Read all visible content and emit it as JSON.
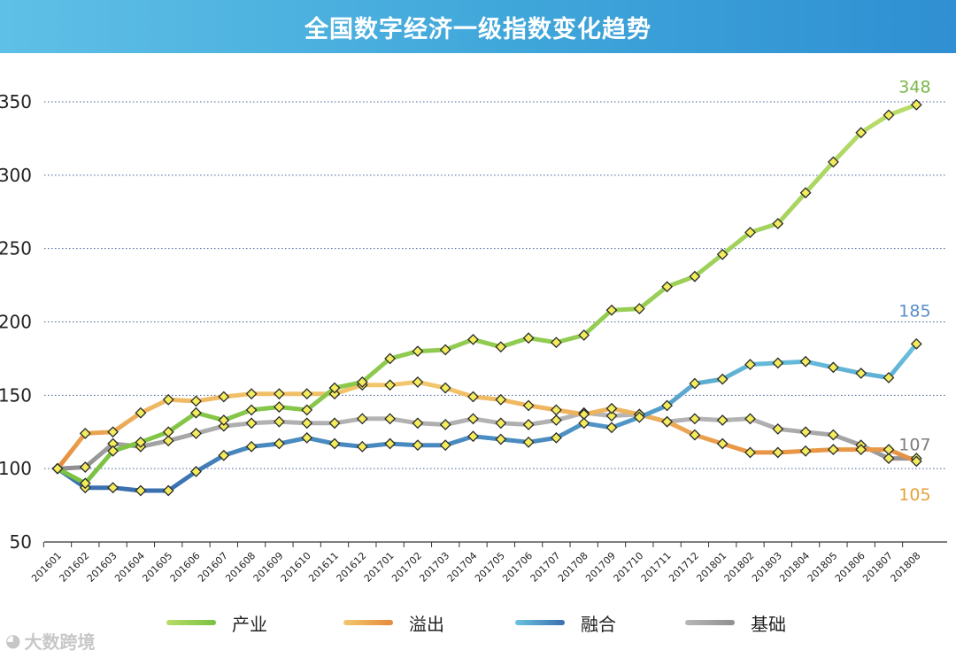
{
  "header": {
    "title": "全国数字经济一级指数变化趋势"
  },
  "chart_data": {
    "type": "line",
    "title": "全国数字经济一级指数变化趋势",
    "xlabel": "",
    "ylabel": "",
    "ylim": [
      50,
      350
    ],
    "yticks": [
      50,
      100,
      150,
      200,
      250,
      300,
      350
    ],
    "grid": true,
    "legend_position": "bottom",
    "categories": [
      "201601",
      "201602",
      "201603",
      "201604",
      "201605",
      "201606",
      "201607",
      "201608",
      "201609",
      "201610",
      "201611",
      "201612",
      "201701",
      "201702",
      "201703",
      "201704",
      "201705",
      "201706",
      "201707",
      "201708",
      "201709",
      "201710",
      "201711",
      "201712",
      "201801",
      "201802",
      "201803",
      "201804",
      "201805",
      "201806",
      "201807",
      "201808"
    ],
    "series": [
      {
        "name": "产业",
        "color": "#7ac142",
        "light": "#b9dc6a",
        "values": [
          100,
          90,
          112,
          118,
          125,
          138,
          133,
          140,
          142,
          140,
          155,
          159,
          175,
          180,
          181,
          188,
          183,
          189,
          186,
          191,
          208,
          209,
          224,
          231,
          246,
          261,
          267,
          288,
          309,
          329,
          341,
          348
        ]
      },
      {
        "name": "溢出",
        "color": "#e58a3c",
        "light": "#f2c86e",
        "values": [
          100,
          124,
          125,
          138,
          147,
          146,
          149,
          151,
          151,
          151,
          151,
          157,
          157,
          159,
          155,
          149,
          147,
          143,
          140,
          137,
          141,
          137,
          132,
          123,
          117,
          111,
          111,
          112,
          113,
          113,
          113,
          105
        ]
      },
      {
        "name": "融合",
        "color": "#3a6fb0",
        "light": "#6ac3de",
        "values": [
          100,
          87,
          87,
          85,
          85,
          98,
          109,
          115,
          117,
          121,
          117,
          115,
          117,
          116,
          116,
          122,
          120,
          118,
          121,
          131,
          128,
          135,
          143,
          158,
          161,
          171,
          172,
          173,
          169,
          165,
          162,
          185
        ]
      },
      {
        "name": "基础",
        "color": "#8f8f8f",
        "light": "#b8b8b8",
        "values": [
          100,
          101,
          117,
          115,
          119,
          124,
          129,
          131,
          132,
          131,
          131,
          134,
          134,
          131,
          130,
          134,
          131,
          130,
          133,
          138,
          136,
          137,
          132,
          134,
          133,
          134,
          127,
          125,
          123,
          116,
          107,
          107
        ]
      }
    ],
    "end_labels": [
      {
        "series": "产业",
        "text": "348",
        "color": "#7ab648"
      },
      {
        "series": "融合",
        "text": "185",
        "color": "#5b8fc7"
      },
      {
        "series": "基础",
        "text": "107",
        "color": "#7d7d7d"
      },
      {
        "series": "溢出",
        "text": "105",
        "color": "#e6a23c"
      }
    ]
  },
  "watermark": {
    "text": "大数跨境",
    "icon": "weibo-logo-icon"
  }
}
